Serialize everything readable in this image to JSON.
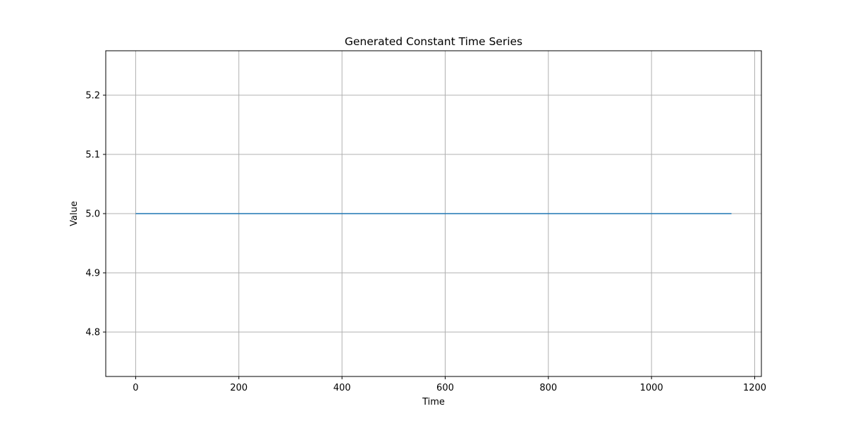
{
  "chart_data": {
    "type": "line",
    "title": "Generated Constant Time Series",
    "xlabel": "Time",
    "ylabel": "Value",
    "xlim": [
      -58,
      1213
    ],
    "ylim": [
      4.725,
      5.275
    ],
    "xticks": [
      0,
      200,
      400,
      600,
      800,
      1000,
      1200
    ],
    "xtick_labels": [
      "0",
      "200",
      "400",
      "600",
      "800",
      "1000",
      "1200"
    ],
    "yticks": [
      4.8,
      4.9,
      5.0,
      5.1,
      5.2
    ],
    "ytick_labels": [
      "4.8",
      "4.9",
      "5.0",
      "5.1",
      "5.2"
    ],
    "grid": true,
    "legend": "none",
    "series": [
      {
        "x": [
          0,
          1155
        ],
        "y": [
          5.0,
          5.0
        ],
        "color": "#1f77b4"
      }
    ]
  }
}
